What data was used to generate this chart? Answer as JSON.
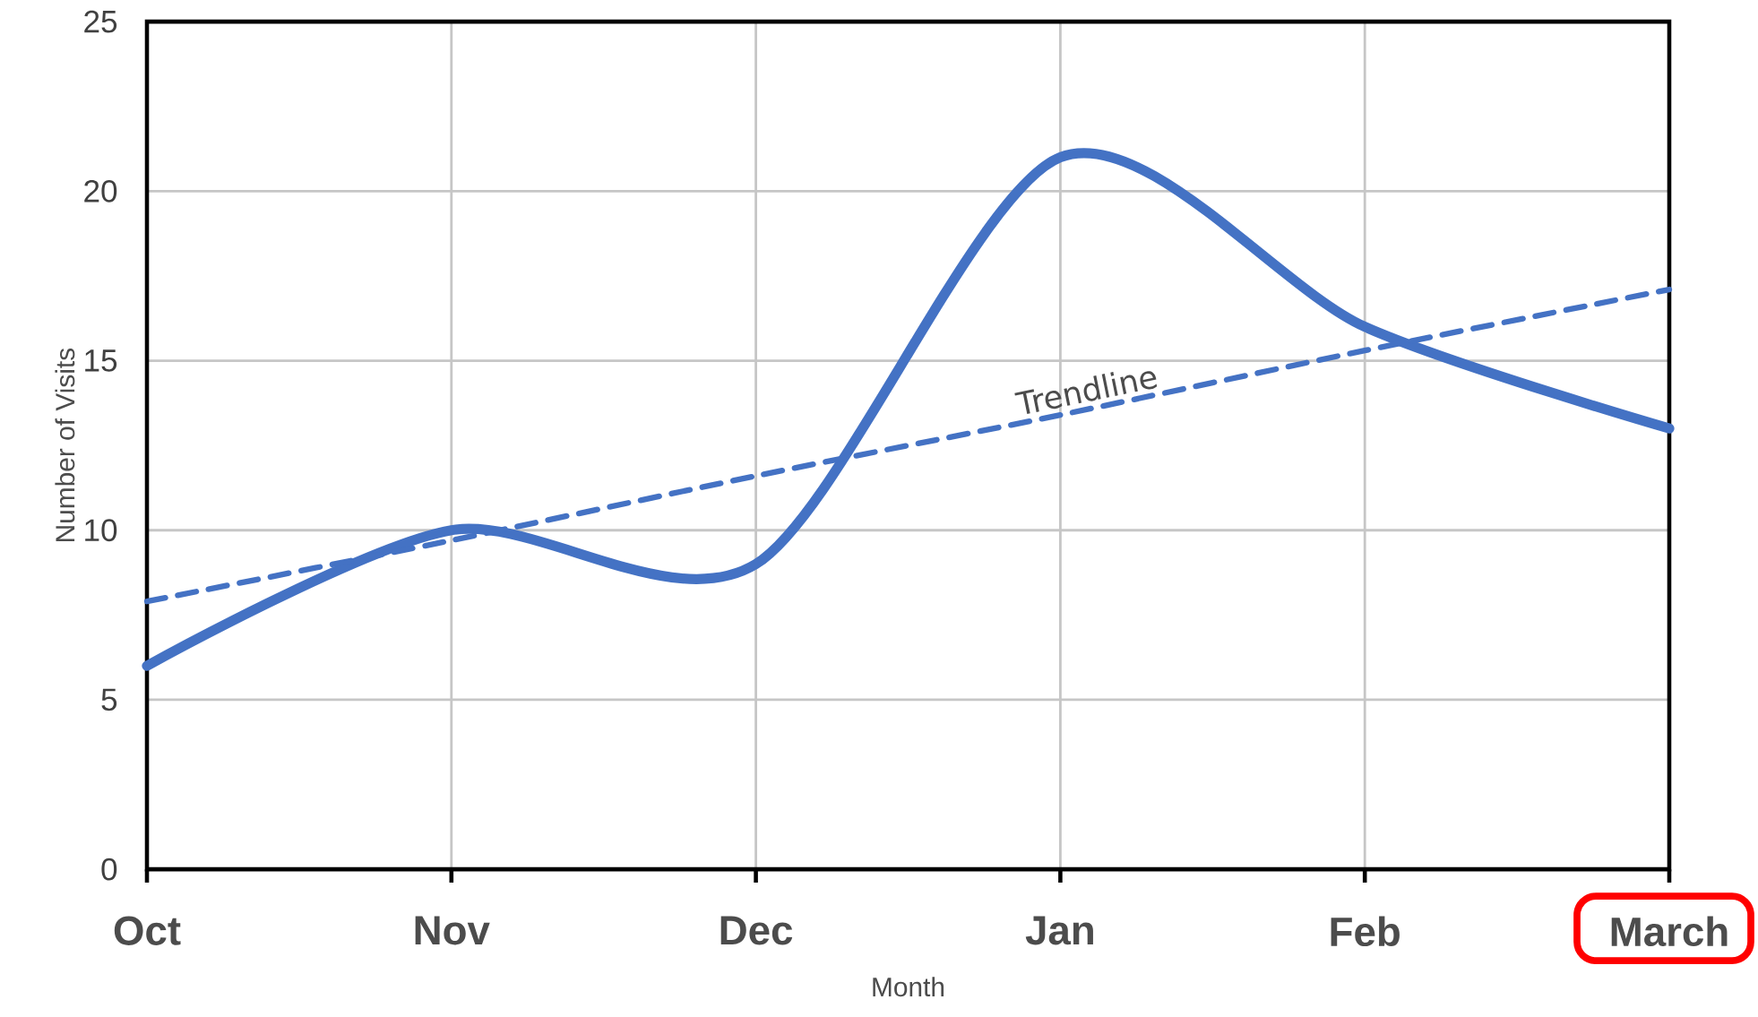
{
  "chart_data": {
    "type": "line",
    "xlabel": "Month",
    "ylabel": "Number of Visits",
    "categories": [
      "Oct",
      "Nov",
      "Dec",
      "Jan",
      "Feb",
      "March"
    ],
    "series": [
      {
        "color": "#4472c4",
        "values": [
          6,
          10,
          9,
          21,
          16,
          13
        ],
        "line_style": "solid"
      },
      {
        "name": "Trendline",
        "type": "line",
        "color": "#4472c4",
        "values": [
          7.9,
          9.7,
          11.6,
          13.4,
          15.3,
          17.1
        ],
        "line_style": "dashed"
      }
    ],
    "ylim": [
      0,
      25
    ],
    "yticks": [
      0,
      5,
      10,
      15,
      20,
      25
    ],
    "grid": true
  }
}
